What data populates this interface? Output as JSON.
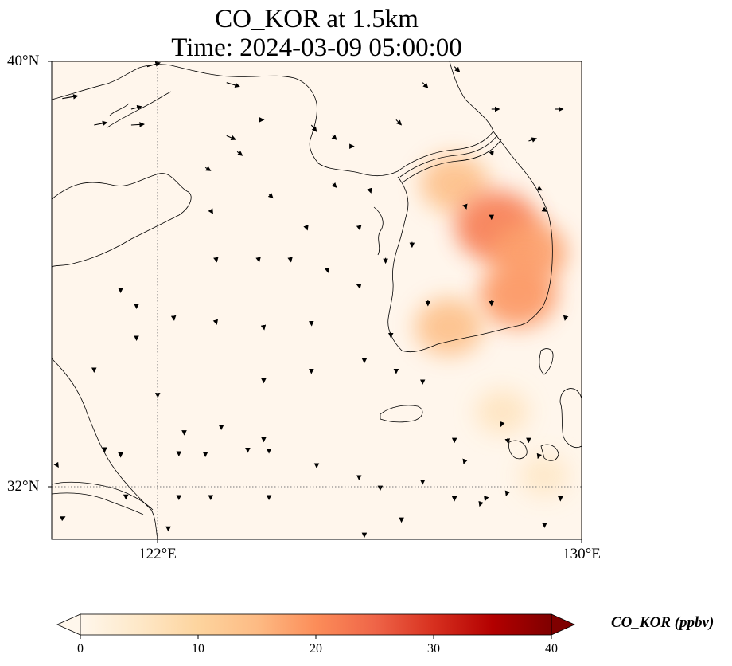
{
  "title": {
    "line1": "CO_KOR at 1.5km",
    "line2": "Time: 2024-03-09 05:00:00"
  },
  "axes": {
    "lat_ticks": [
      {
        "value": 40,
        "label": "40°N"
      },
      {
        "value": 32,
        "label": "32°N"
      }
    ],
    "lon_ticks": [
      {
        "value": 122,
        "label": "122°E"
      },
      {
        "value": 130,
        "label": "130°E"
      }
    ],
    "extent": {
      "lon_min": 120,
      "lon_max": 130,
      "lat_min": 31,
      "lat_max": 40
    },
    "gridlines": "dotted, at 122°E and 32°N"
  },
  "colorbar": {
    "label": "CO_KOR (ppbv)",
    "ticks": [
      "0",
      "10",
      "20",
      "30",
      "40"
    ],
    "range": [
      0,
      40
    ],
    "extend": "both",
    "colormap": "OrRd",
    "colors": [
      "#fff7ec",
      "#fee8c8",
      "#fdd49e",
      "#fdbb84",
      "#fc8d59",
      "#ef6548",
      "#d7301f",
      "#b30000",
      "#7f0000"
    ]
  },
  "concentration_hotspots": [
    {
      "lon": 127.6,
      "lat": 37.7,
      "ppbv": 14
    },
    {
      "lon": 128.4,
      "lat": 36.9,
      "ppbv": 22
    },
    {
      "lon": 129.0,
      "lat": 36.4,
      "ppbv": 18
    },
    {
      "lon": 128.8,
      "lat": 35.6,
      "ppbv": 19
    },
    {
      "lon": 127.5,
      "lat": 35.0,
      "ppbv": 14
    },
    {
      "lon": 128.5,
      "lat": 33.4,
      "ppbv": 6
    },
    {
      "lon": 129.3,
      "lat": 32.2,
      "ppbv": 5
    }
  ],
  "wind_vectors": [
    {
      "lon": 120.2,
      "lat": 39.3,
      "u": 6,
      "v": 1
    },
    {
      "lon": 120.8,
      "lat": 38.8,
      "u": 5,
      "v": 1
    },
    {
      "lon": 121.5,
      "lat": 38.8,
      "u": 5,
      "v": 0.3
    },
    {
      "lon": 121.5,
      "lat": 39.1,
      "u": 4,
      "v": 1
    },
    {
      "lon": 121.8,
      "lat": 39.9,
      "u": 5,
      "v": 1.5
    },
    {
      "lon": 123.3,
      "lat": 39.6,
      "u": 5,
      "v": -1.5
    },
    {
      "lon": 123.3,
      "lat": 38.6,
      "u": 3.5,
      "v": -1.5
    },
    {
      "lon": 123.5,
      "lat": 38.3,
      "u": 2,
      "v": -1.5
    },
    {
      "lon": 122.9,
      "lat": 38.0,
      "u": 2,
      "v": -1.2
    },
    {
      "lon": 124.0,
      "lat": 38.9,
      "u": 0,
      "v": 0
    },
    {
      "lon": 124.9,
      "lat": 38.8,
      "u": 2,
      "v": -2.5
    },
    {
      "lon": 125.3,
      "lat": 38.6,
      "u": 1.5,
      "v": -1.5
    },
    {
      "lon": 125.7,
      "lat": 38.4,
      "u": 0,
      "v": 0
    },
    {
      "lon": 125.3,
      "lat": 37.7,
      "u": 1.5,
      "v": -1.5
    },
    {
      "lon": 126.0,
      "lat": 37.6,
      "u": 0.5,
      "v": -1.5
    },
    {
      "lon": 126.5,
      "lat": 38.9,
      "u": 2,
      "v": -2
    },
    {
      "lon": 127.0,
      "lat": 39.6,
      "u": 2,
      "v": -2
    },
    {
      "lon": 127.6,
      "lat": 39.9,
      "u": 2,
      "v": -2
    },
    {
      "lon": 128.3,
      "lat": 39.1,
      "u": 3,
      "v": 0
    },
    {
      "lon": 129.0,
      "lat": 38.5,
      "u": 3,
      "v": 1
    },
    {
      "lon": 129.5,
      "lat": 39.1,
      "u": 3,
      "v": 0
    },
    {
      "lon": 124.1,
      "lat": 37.5,
      "u": 1.5,
      "v": -1.5
    },
    {
      "lon": 123.0,
      "lat": 37.2,
      "u": 0.8,
      "v": -1.3
    },
    {
      "lon": 124.8,
      "lat": 36.9,
      "u": 0.5,
      "v": -1.5
    },
    {
      "lon": 125.8,
      "lat": 36.9,
      "u": 0.3,
      "v": -1.5
    },
    {
      "lon": 126.8,
      "lat": 36.6,
      "u": 0,
      "v": -2
    },
    {
      "lon": 126.3,
      "lat": 36.3,
      "u": 0,
      "v": -2
    },
    {
      "lon": 123.1,
      "lat": 36.3,
      "u": 0.3,
      "v": -1.5
    },
    {
      "lon": 123.9,
      "lat": 36.3,
      "u": 0.3,
      "v": -1.5
    },
    {
      "lon": 124.5,
      "lat": 36.3,
      "u": 0.3,
      "v": -1.5
    },
    {
      "lon": 125.2,
      "lat": 36.1,
      "u": 0.3,
      "v": -1.5
    },
    {
      "lon": 125.8,
      "lat": 35.8,
      "u": 0.3,
      "v": -1.5
    },
    {
      "lon": 121.3,
      "lat": 35.7,
      "u": 0,
      "v": -1
    },
    {
      "lon": 121.6,
      "lat": 35.4,
      "u": 0,
      "v": -1
    },
    {
      "lon": 122.3,
      "lat": 35.2,
      "u": 0.2,
      "v": -1.5
    },
    {
      "lon": 123.1,
      "lat": 35.1,
      "u": 0.3,
      "v": -1
    },
    {
      "lon": 124.0,
      "lat": 35.0,
      "u": 0.2,
      "v": -1
    },
    {
      "lon": 124.9,
      "lat": 35.1,
      "u": 0.1,
      "v": -1.5
    },
    {
      "lon": 126.4,
      "lat": 34.9,
      "u": 0,
      "v": -2
    },
    {
      "lon": 127.1,
      "lat": 35.5,
      "u": 0,
      "v": -2
    },
    {
      "lon": 128.3,
      "lat": 35.5,
      "u": 0,
      "v": -2
    },
    {
      "lon": 129.7,
      "lat": 35.2,
      "u": -0.3,
      "v": -1.5
    },
    {
      "lon": 120.8,
      "lat": 34.2,
      "u": 0,
      "v": -1
    },
    {
      "lon": 121.6,
      "lat": 34.8,
      "u": 0,
      "v": -1
    },
    {
      "lon": 125.9,
      "lat": 34.4,
      "u": 0,
      "v": -1.5
    },
    {
      "lon": 126.5,
      "lat": 34.2,
      "u": 0,
      "v": -1.5
    },
    {
      "lon": 127.0,
      "lat": 34.0,
      "u": 0,
      "v": -1.5
    },
    {
      "lon": 124.9,
      "lat": 34.2,
      "u": 0,
      "v": -1.5
    },
    {
      "lon": 124.0,
      "lat": 34.0,
      "u": 0,
      "v": -1
    },
    {
      "lon": 122.0,
      "lat": 33.7,
      "u": 0,
      "v": -0.5
    },
    {
      "lon": 122.5,
      "lat": 33.0,
      "u": 0,
      "v": -0.6
    },
    {
      "lon": 123.2,
      "lat": 33.1,
      "u": 0,
      "v": -0.6
    },
    {
      "lon": 124.0,
      "lat": 32.9,
      "u": 0,
      "v": -1.2
    },
    {
      "lon": 123.7,
      "lat": 32.7,
      "u": 0,
      "v": -1.2
    },
    {
      "lon": 124.1,
      "lat": 32.7,
      "u": 0,
      "v": -1.5
    },
    {
      "lon": 122.9,
      "lat": 32.6,
      "u": 0,
      "v": -0.8
    },
    {
      "lon": 122.4,
      "lat": 32.6,
      "u": 0,
      "v": -0.5
    },
    {
      "lon": 121.0,
      "lat": 32.7,
      "u": 0,
      "v": -1
    },
    {
      "lon": 121.3,
      "lat": 32.6,
      "u": 0,
      "v": -1
    },
    {
      "lon": 120.1,
      "lat": 32.4,
      "u": 0.5,
      "v": -0.8
    },
    {
      "lon": 127.6,
      "lat": 32.9,
      "u": 0,
      "v": -1.5
    },
    {
      "lon": 127.8,
      "lat": 32.5,
      "u": -0.5,
      "v": -1.5
    },
    {
      "lon": 128.5,
      "lat": 33.2,
      "u": -0.5,
      "v": -1.5
    },
    {
      "lon": 128.6,
      "lat": 32.9,
      "u": 0.3,
      "v": -1.8
    },
    {
      "lon": 129.2,
      "lat": 32.6,
      "u": -0.5,
      "v": -1.5
    },
    {
      "lon": 129.0,
      "lat": 32.9,
      "u": 0,
      "v": -1.5
    },
    {
      "lon": 125.0,
      "lat": 32.4,
      "u": 0,
      "v": -1
    },
    {
      "lon": 125.8,
      "lat": 32.2,
      "u": 0,
      "v": -1.5
    },
    {
      "lon": 126.2,
      "lat": 32.0,
      "u": 0,
      "v": -1.5
    },
    {
      "lon": 127.0,
      "lat": 32.1,
      "u": 0,
      "v": -1.2
    },
    {
      "lon": 127.6,
      "lat": 31.8,
      "u": 0,
      "v": -1.5
    },
    {
      "lon": 128.2,
      "lat": 31.8,
      "u": -0.5,
      "v": -1.5
    },
    {
      "lon": 128.1,
      "lat": 31.7,
      "u": -0.5,
      "v": -1.5
    },
    {
      "lon": 128.6,
      "lat": 31.9,
      "u": -0.5,
      "v": -1.5
    },
    {
      "lon": 129.6,
      "lat": 31.8,
      "u": 0,
      "v": -1.5
    },
    {
      "lon": 129.3,
      "lat": 31.3,
      "u": 0,
      "v": -1.5
    },
    {
      "lon": 126.6,
      "lat": 31.4,
      "u": 0,
      "v": -1.5
    },
    {
      "lon": 125.9,
      "lat": 31.1,
      "u": 0,
      "v": -1.2
    },
    {
      "lon": 124.1,
      "lat": 31.8,
      "u": 0,
      "v": -1
    },
    {
      "lon": 123.0,
      "lat": 31.8,
      "u": 0,
      "v": -1
    },
    {
      "lon": 122.4,
      "lat": 31.8,
      "u": 0,
      "v": -1
    },
    {
      "lon": 121.4,
      "lat": 31.8,
      "u": 0,
      "v": -0.8
    },
    {
      "lon": 122.2,
      "lat": 31.2,
      "u": 0,
      "v": -0.8
    },
    {
      "lon": 120.2,
      "lat": 31.4,
      "u": 1,
      "v": 0.5
    },
    {
      "lon": 128.3,
      "lat": 38.3,
      "u": 0.5,
      "v": -1.5
    },
    {
      "lon": 127.8,
      "lat": 37.3,
      "u": 0.5,
      "v": -1.5
    },
    {
      "lon": 128.3,
      "lat": 37.1,
      "u": 0,
      "v": -1.5
    },
    {
      "lon": 129.3,
      "lat": 37.2,
      "u": 0.8,
      "v": -0.5
    },
    {
      "lon": 129.2,
      "lat": 37.6,
      "u": 1,
      "v": -0.5
    }
  ]
}
